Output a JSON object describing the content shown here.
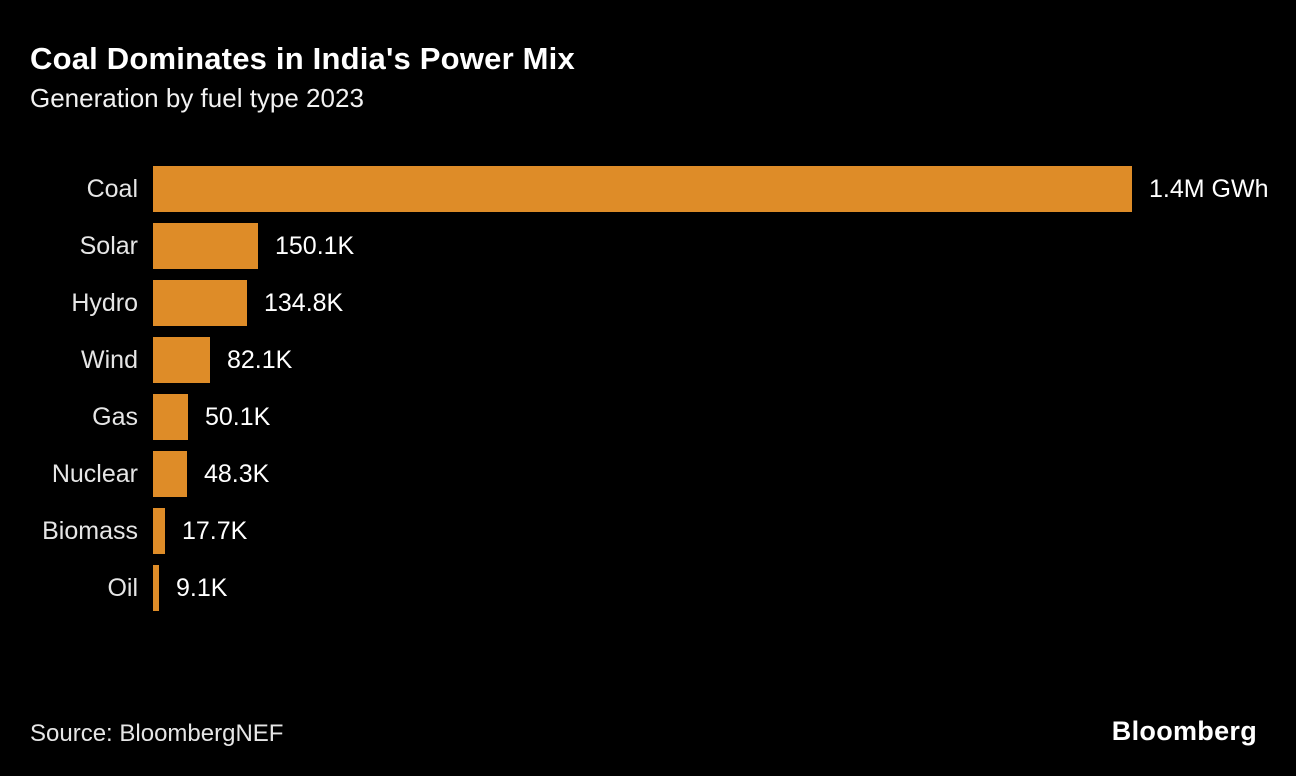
{
  "header": {
    "title": "Coal Dominates in India's Power Mix",
    "subtitle": "Generation by fuel type 2023"
  },
  "chart_data": {
    "type": "bar",
    "orientation": "horizontal",
    "title": "Coal Dominates in India's Power Mix",
    "subtitle": "Generation by fuel type 2023",
    "unit": "GWh",
    "categories": [
      "Coal",
      "Solar",
      "Hydro",
      "Wind",
      "Gas",
      "Nuclear",
      "Biomass",
      "Oil"
    ],
    "values": [
      1400000,
      150100,
      134800,
      82100,
      50100,
      48300,
      17700,
      9100
    ],
    "value_labels": [
      "1.4M GWh",
      "150.1K",
      "134.8K",
      "82.1K",
      "50.1K",
      "48.3K",
      "17.7K",
      "9.1K"
    ],
    "xlim": [
      0,
      1400000
    ],
    "grid": false,
    "legend": false,
    "bar_color": "#de8c28"
  },
  "footer": {
    "source": "Source: BloombergNEF",
    "brand": "Bloomberg"
  },
  "colors": {
    "background": "#000000",
    "bar": "#de8c28",
    "title": "#ffffff",
    "category_label": "#e6e6e6",
    "value_label": "#ffffff",
    "source_text": "#e6e6e6"
  }
}
